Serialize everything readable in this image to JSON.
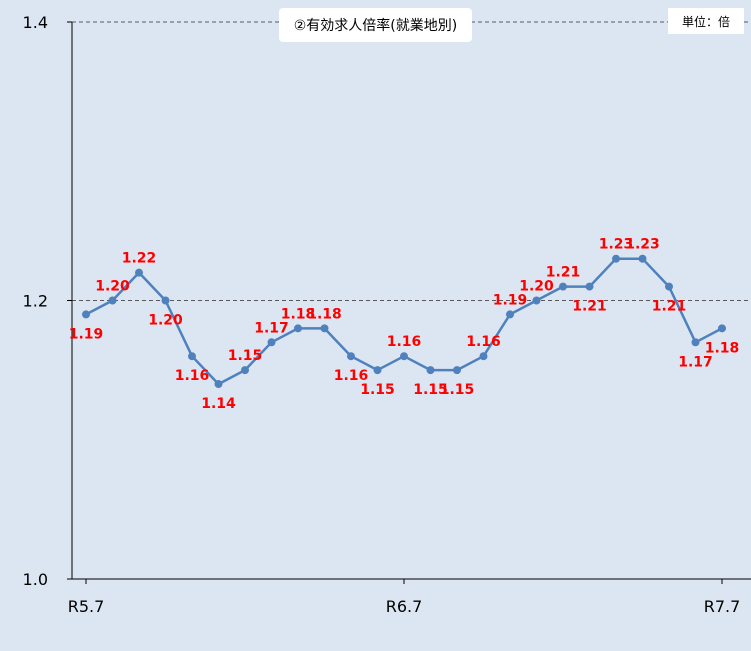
{
  "chart_data": {
    "type": "line",
    "title": "②有効求人倍率(就業地別)",
    "unit_label": "単位：倍",
    "xlabel": "",
    "ylabel": "",
    "ylim": [
      1.0,
      1.4
    ],
    "y_ticks": [
      "1.0",
      "1.2",
      "1.4"
    ],
    "x_tick_labels": [
      {
        "index": 0,
        "label": "R5.7"
      },
      {
        "index": 12,
        "label": "R6.7"
      },
      {
        "index": 24,
        "label": "R7.7"
      }
    ],
    "reference_lines": [
      1.2,
      1.4
    ],
    "grid": false,
    "colors": {
      "plot_background": "#dce6f2",
      "line": "#4f81bd",
      "data_label": "#ff0000",
      "reference_line": "#595959"
    },
    "series": [
      {
        "values": [
          1.19,
          1.2,
          1.22,
          1.2,
          1.16,
          1.14,
          1.15,
          1.17,
          1.18,
          1.18,
          1.16,
          1.15,
          1.16,
          1.15,
          1.15,
          1.16,
          1.19,
          1.2,
          1.21,
          1.21,
          1.23,
          1.23,
          1.21,
          1.17,
          1.18
        ],
        "labels": [
          "1.19",
          "1.20",
          "1.22",
          "1.20",
          "1.16",
          "1.14",
          "1.15",
          "1.17",
          "1.18",
          "1.18",
          "1.16",
          "1.15",
          "1.16",
          "1.15",
          "1.15",
          "1.16",
          "1.19",
          "1.20",
          "1.21",
          "1.21",
          "1.23",
          "1.23",
          "1.21",
          "1.17",
          "1.18"
        ]
      }
    ]
  }
}
